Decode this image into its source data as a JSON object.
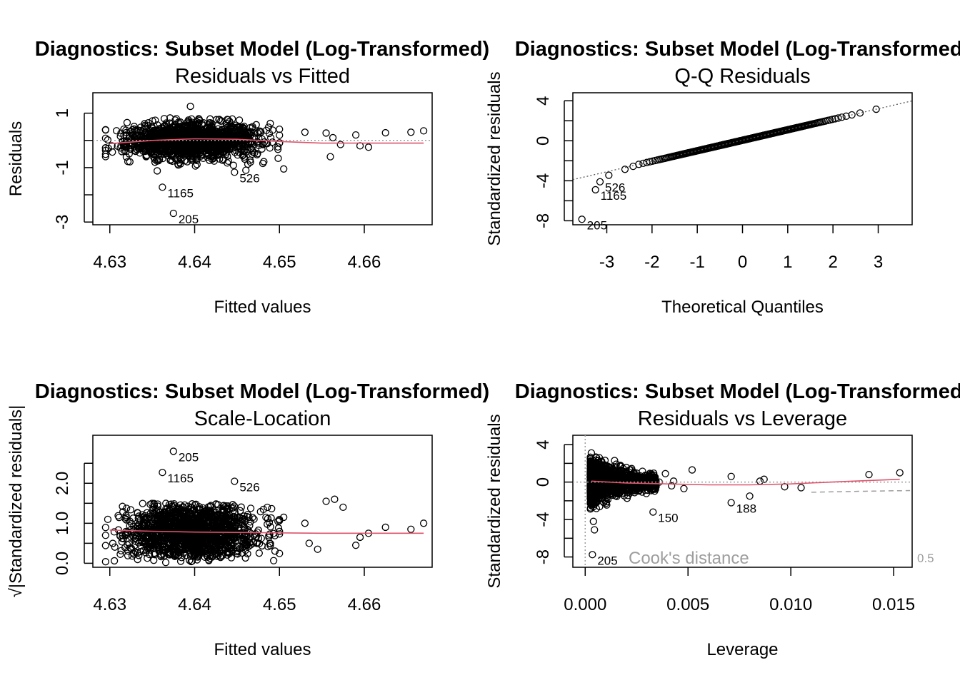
{
  "chart_data": [
    {
      "type": "scatter",
      "main": "Diagnostics: Subset Model (Log-Transformed)",
      "title": "Residuals vs Fitted",
      "xlabel": "Fitted values",
      "ylabel": "Residuals",
      "xlim": [
        4.628,
        4.668
      ],
      "ylim": [
        -3.1,
        1.75
      ],
      "xticks": [
        "4.63",
        "4.64",
        "4.65",
        "4.66"
      ],
      "xtick_values": [
        4.63,
        4.64,
        4.65,
        4.66
      ],
      "yticks": [
        "-3",
        "-1",
        "1"
      ],
      "ytick_values": [
        -3,
        -2,
        -1,
        0,
        1
      ],
      "reference_line": 0,
      "smooth": {
        "x": [
          4.63,
          4.635,
          4.64,
          4.645,
          4.65,
          4.655,
          4.667
        ],
        "y": [
          -0.12,
          0.0,
          0.06,
          0.04,
          -0.04,
          -0.1,
          -0.1
        ]
      },
      "labeled_points": [
        {
          "label": "1165",
          "x": 4.6362,
          "y": -1.72
        },
        {
          "label": "205",
          "x": 4.6375,
          "y": -2.68
        },
        {
          "label": "526",
          "x": 4.6447,
          "y": -1.17
        }
      ],
      "cloud": {
        "n": 1500,
        "x_center": 4.6395,
        "x_spread": 0.0038,
        "y_spread": 0.33,
        "outliers": [
          [
            4.667,
            0.35
          ],
          [
            4.6655,
            0.3
          ],
          [
            4.6625,
            0.28
          ],
          [
            4.659,
            0.2
          ],
          [
            4.6555,
            0.27
          ],
          [
            4.653,
            0.3
          ],
          [
            4.6595,
            -0.2
          ],
          [
            4.6605,
            -0.25
          ],
          [
            4.656,
            -0.6
          ],
          [
            4.6505,
            -1.05
          ],
          [
            4.6563,
            0.1
          ],
          [
            4.6572,
            -0.15
          ],
          [
            4.6395,
            1.25
          ]
        ]
      }
    },
    {
      "type": "scatter",
      "main": "Diagnostics: Subset Model (Log-Transformed)",
      "title": "Q-Q Residuals",
      "xlabel": "Theoretical Quantiles",
      "ylabel": "Standardized residuals",
      "xlim": [
        -3.75,
        3.75
      ],
      "ylim": [
        -8.4,
        4.8
      ],
      "xticks": [
        "-3",
        "-2",
        "-1",
        "0",
        "1",
        "2",
        "3"
      ],
      "xtick_values": [
        -3,
        -2,
        -1,
        0,
        1,
        2,
        3
      ],
      "yticks": [
        "-8",
        "-4",
        "0",
        "4"
      ],
      "ytick_values": [
        -8,
        -6,
        -4,
        -2,
        0,
        2,
        4
      ],
      "reference_line": {
        "slope": 1.05,
        "intercept": 0.05
      },
      "labeled_points": [
        {
          "label": "205",
          "x": -3.55,
          "y": -7.85
        },
        {
          "label": "1165",
          "x": -3.25,
          "y": -4.9
        },
        {
          "label": "526",
          "x": -3.15,
          "y": -4.1
        }
      ],
      "n_points": 320
    },
    {
      "type": "scatter",
      "main": "Diagnostics: Subset Model (Log-Transformed)",
      "title": "Scale-Location",
      "xlabel": "Fitted values",
      "ylabel": "√|Standardized residuals|",
      "xlim": [
        4.628,
        4.668
      ],
      "ylim": [
        -0.1,
        3.2
      ],
      "xticks": [
        "4.63",
        "4.64",
        "4.65",
        "4.66"
      ],
      "xtick_values": [
        4.63,
        4.64,
        4.65,
        4.66
      ],
      "yticks": [
        "0.0",
        "1.0",
        "2.0"
      ],
      "ytick_values": [
        0,
        0.5,
        1.0,
        1.5,
        2.0,
        2.5
      ],
      "smooth": {
        "x": [
          4.63,
          4.635,
          4.64,
          4.645,
          4.65,
          4.655,
          4.667
        ],
        "y": [
          0.83,
          0.8,
          0.78,
          0.77,
          0.76,
          0.75,
          0.75
        ]
      },
      "labeled_points": [
        {
          "label": "205",
          "x": 4.6375,
          "y": 2.8
        },
        {
          "label": "1165",
          "x": 4.6362,
          "y": 2.27
        },
        {
          "label": "526",
          "x": 4.6447,
          "y": 2.05
        }
      ],
      "cloud": {
        "n": 1500,
        "x_center": 4.6395,
        "x_spread": 0.0038,
        "outliers": [
          [
            4.667,
            1.0
          ],
          [
            4.6655,
            0.85
          ],
          [
            4.6625,
            0.9
          ],
          [
            4.6605,
            0.75
          ],
          [
            4.659,
            0.45
          ],
          [
            4.6595,
            0.65
          ],
          [
            4.6575,
            1.4
          ],
          [
            4.6565,
            1.6
          ],
          [
            4.6555,
            1.55
          ],
          [
            4.653,
            1.0
          ],
          [
            4.6505,
            1.15
          ],
          [
            4.6535,
            0.5
          ],
          [
            4.6545,
            0.35
          ]
        ]
      }
    },
    {
      "type": "scatter",
      "main": "Diagnostics: Subset Model (Log-Transformed)",
      "title": "Residuals vs Leverage",
      "xlabel": "Leverage",
      "ylabel": "Standardized residuals",
      "xlim": [
        -0.0006,
        0.0159
      ],
      "ylim": [
        -9.1,
        5.0
      ],
      "xticks": [
        "0.000",
        "0.005",
        "0.010",
        "0.015"
      ],
      "xtick_values": [
        0,
        0.005,
        0.01,
        0.015
      ],
      "yticks": [
        "-8",
        "-4",
        "0",
        "4"
      ],
      "ytick_values": [
        -8,
        -6,
        -4,
        -2,
        0,
        2,
        4
      ],
      "cooks_distance_label": "Cook's distance",
      "contour_label": "0.5",
      "smooth": {
        "x": [
          0.0003,
          0.002,
          0.004,
          0.006,
          0.008,
          0.01,
          0.0125,
          0.0153
        ],
        "y": [
          0.1,
          -0.1,
          -0.2,
          -0.3,
          -0.3,
          -0.2,
          0.05,
          0.3
        ]
      },
      "labeled_points": [
        {
          "label": "205",
          "x": 0.00035,
          "y": -7.75
        },
        {
          "label": "150",
          "x": 0.0033,
          "y": -3.2
        },
        {
          "label": "188",
          "x": 0.0071,
          "y": -2.2
        }
      ],
      "outliers": [
        [
          0.0153,
          1.0
        ],
        [
          0.0138,
          0.8
        ],
        [
          0.0105,
          -0.6
        ],
        [
          0.0097,
          -0.5
        ],
        [
          0.0087,
          0.3
        ],
        [
          0.0085,
          0.1
        ],
        [
          0.008,
          -1.5
        ],
        [
          0.0071,
          0.6
        ],
        [
          0.0052,
          1.3
        ],
        [
          0.0048,
          -0.7
        ],
        [
          0.0043,
          0.1
        ],
        [
          0.0042,
          -0.4
        ],
        [
          0.0039,
          0.9
        ],
        [
          0.0036,
          0.0
        ],
        [
          0.0034,
          -0.7
        ],
        [
          0.0031,
          -0.5
        ],
        [
          0.0028,
          0.2
        ],
        [
          0.0026,
          -0.9
        ],
        [
          0.0025,
          0.6
        ]
      ]
    }
  ]
}
